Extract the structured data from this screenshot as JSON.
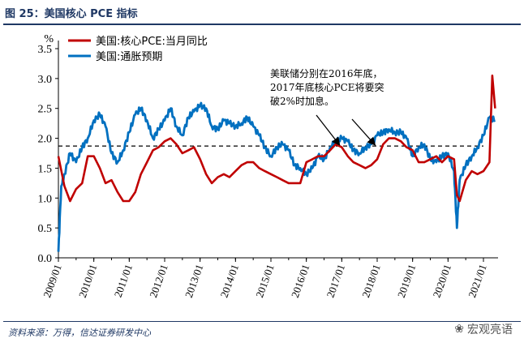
{
  "header": {
    "title": "图 25：美国核心 PCE 指标"
  },
  "footer": {
    "source": "资料来源：万得，信达证券研发中心",
    "watermark": "宏观亮语"
  },
  "colors": {
    "core_pce": "#c00000",
    "expectation": "#0070c0",
    "reference": "#000000",
    "title": "#1f3864"
  },
  "chart_data": {
    "type": "line",
    "title": "美国核心 PCE 指标",
    "ylabel": "%",
    "xlabel": "",
    "ylim": [
      0.0,
      3.5
    ],
    "yticks": [
      "0.0",
      "0.5",
      "1.0",
      "1.5",
      "2.0",
      "2.5",
      "3.0",
      "3.5"
    ],
    "xlim": [
      2009.0,
      2021.5
    ],
    "xticks": [
      "2009/01",
      "2010/01",
      "2011/01",
      "2012/01",
      "2013/01",
      "2014/01",
      "2015/01",
      "2016/01",
      "2017/01",
      "2018/01",
      "2019/01",
      "2020/01",
      "2021/01"
    ],
    "grid": false,
    "legend": "top-left",
    "reference_line": {
      "y": 1.87,
      "style": "dashed"
    },
    "annotation": {
      "lines": [
        "美联储分别在2016年底，",
        "2017年底核心PCE将要突",
        "破2%时加息。"
      ],
      "arrow_targets": [
        [
          2016.92,
          1.82
        ],
        [
          2017.92,
          1.82
        ]
      ]
    },
    "series": [
      {
        "name": "美国:核心PCE:当月同比",
        "x": [
          2009.0,
          2009.17,
          2009.33,
          2009.5,
          2009.67,
          2009.83,
          2010.0,
          2010.17,
          2010.33,
          2010.5,
          2010.67,
          2010.83,
          2011.0,
          2011.17,
          2011.33,
          2011.5,
          2011.67,
          2011.83,
          2012.0,
          2012.17,
          2012.33,
          2012.5,
          2012.67,
          2012.83,
          2013.0,
          2013.17,
          2013.33,
          2013.5,
          2013.67,
          2013.83,
          2014.0,
          2014.17,
          2014.33,
          2014.5,
          2014.67,
          2014.83,
          2015.0,
          2015.17,
          2015.33,
          2015.5,
          2015.67,
          2015.83,
          2016.0,
          2016.17,
          2016.33,
          2016.5,
          2016.67,
          2016.83,
          2017.0,
          2017.17,
          2017.33,
          2017.5,
          2017.67,
          2017.83,
          2018.0,
          2018.17,
          2018.33,
          2018.5,
          2018.67,
          2018.83,
          2019.0,
          2019.17,
          2019.33,
          2019.5,
          2019.67,
          2019.83,
          2020.0,
          2020.17,
          2020.25,
          2020.33,
          2020.5,
          2020.67,
          2020.83,
          2021.0,
          2021.17,
          2021.25,
          2021.33
        ],
        "values": [
          1.7,
          1.2,
          0.95,
          1.15,
          1.25,
          1.7,
          1.7,
          1.5,
          1.25,
          1.3,
          1.1,
          0.95,
          0.95,
          1.1,
          1.4,
          1.6,
          1.8,
          1.85,
          1.95,
          2.0,
          1.9,
          1.75,
          1.8,
          1.85,
          1.65,
          1.4,
          1.25,
          1.35,
          1.4,
          1.35,
          1.45,
          1.55,
          1.6,
          1.6,
          1.5,
          1.45,
          1.4,
          1.35,
          1.3,
          1.25,
          1.25,
          1.25,
          1.6,
          1.65,
          1.7,
          1.7,
          1.8,
          1.9,
          1.85,
          1.7,
          1.6,
          1.55,
          1.5,
          1.55,
          1.65,
          1.9,
          2.0,
          2.0,
          1.95,
          1.85,
          1.8,
          1.6,
          1.6,
          1.65,
          1.7,
          1.6,
          1.7,
          1.65,
          1.05,
          0.95,
          1.3,
          1.45,
          1.4,
          1.45,
          1.6,
          3.05,
          2.5
        ]
      },
      {
        "name": "美国:通胀预期",
        "x": [
          2009.0,
          2009.08,
          2009.17,
          2009.33,
          2009.5,
          2009.67,
          2009.83,
          2010.0,
          2010.17,
          2010.33,
          2010.5,
          2010.67,
          2010.83,
          2011.0,
          2011.17,
          2011.33,
          2011.5,
          2011.67,
          2011.83,
          2012.0,
          2012.17,
          2012.33,
          2012.5,
          2012.67,
          2012.83,
          2013.0,
          2013.17,
          2013.33,
          2013.5,
          2013.67,
          2013.83,
          2014.0,
          2014.17,
          2014.33,
          2014.5,
          2014.67,
          2014.83,
          2015.0,
          2015.17,
          2015.33,
          2015.5,
          2015.67,
          2015.83,
          2016.0,
          2016.17,
          2016.33,
          2016.5,
          2016.67,
          2016.83,
          2017.0,
          2017.17,
          2017.33,
          2017.5,
          2017.67,
          2017.83,
          2018.0,
          2018.17,
          2018.33,
          2018.5,
          2018.67,
          2018.83,
          2019.0,
          2019.17,
          2019.33,
          2019.5,
          2019.67,
          2019.83,
          2020.0,
          2020.17,
          2020.25,
          2020.33,
          2020.5,
          2020.67,
          2020.83,
          2021.0,
          2021.17,
          2021.33
        ],
        "values": [
          0.1,
          1.2,
          1.4,
          1.75,
          1.6,
          1.85,
          2.0,
          2.3,
          2.4,
          2.2,
          1.75,
          1.6,
          1.8,
          2.1,
          2.4,
          2.5,
          2.3,
          2.0,
          2.15,
          2.3,
          2.5,
          2.2,
          2.05,
          2.35,
          2.45,
          2.55,
          2.5,
          2.2,
          2.15,
          2.3,
          2.25,
          2.2,
          2.25,
          2.35,
          2.2,
          2.05,
          1.85,
          1.7,
          1.85,
          1.9,
          1.8,
          1.55,
          1.5,
          1.4,
          1.5,
          1.7,
          1.65,
          1.85,
          1.95,
          2.0,
          1.95,
          1.8,
          1.75,
          1.85,
          1.9,
          2.05,
          2.1,
          2.15,
          2.1,
          2.1,
          2.0,
          1.7,
          1.85,
          1.9,
          1.65,
          1.6,
          1.7,
          1.75,
          1.45,
          0.5,
          1.3,
          1.55,
          1.7,
          1.85,
          2.05,
          2.35,
          2.3
        ]
      }
    ]
  }
}
